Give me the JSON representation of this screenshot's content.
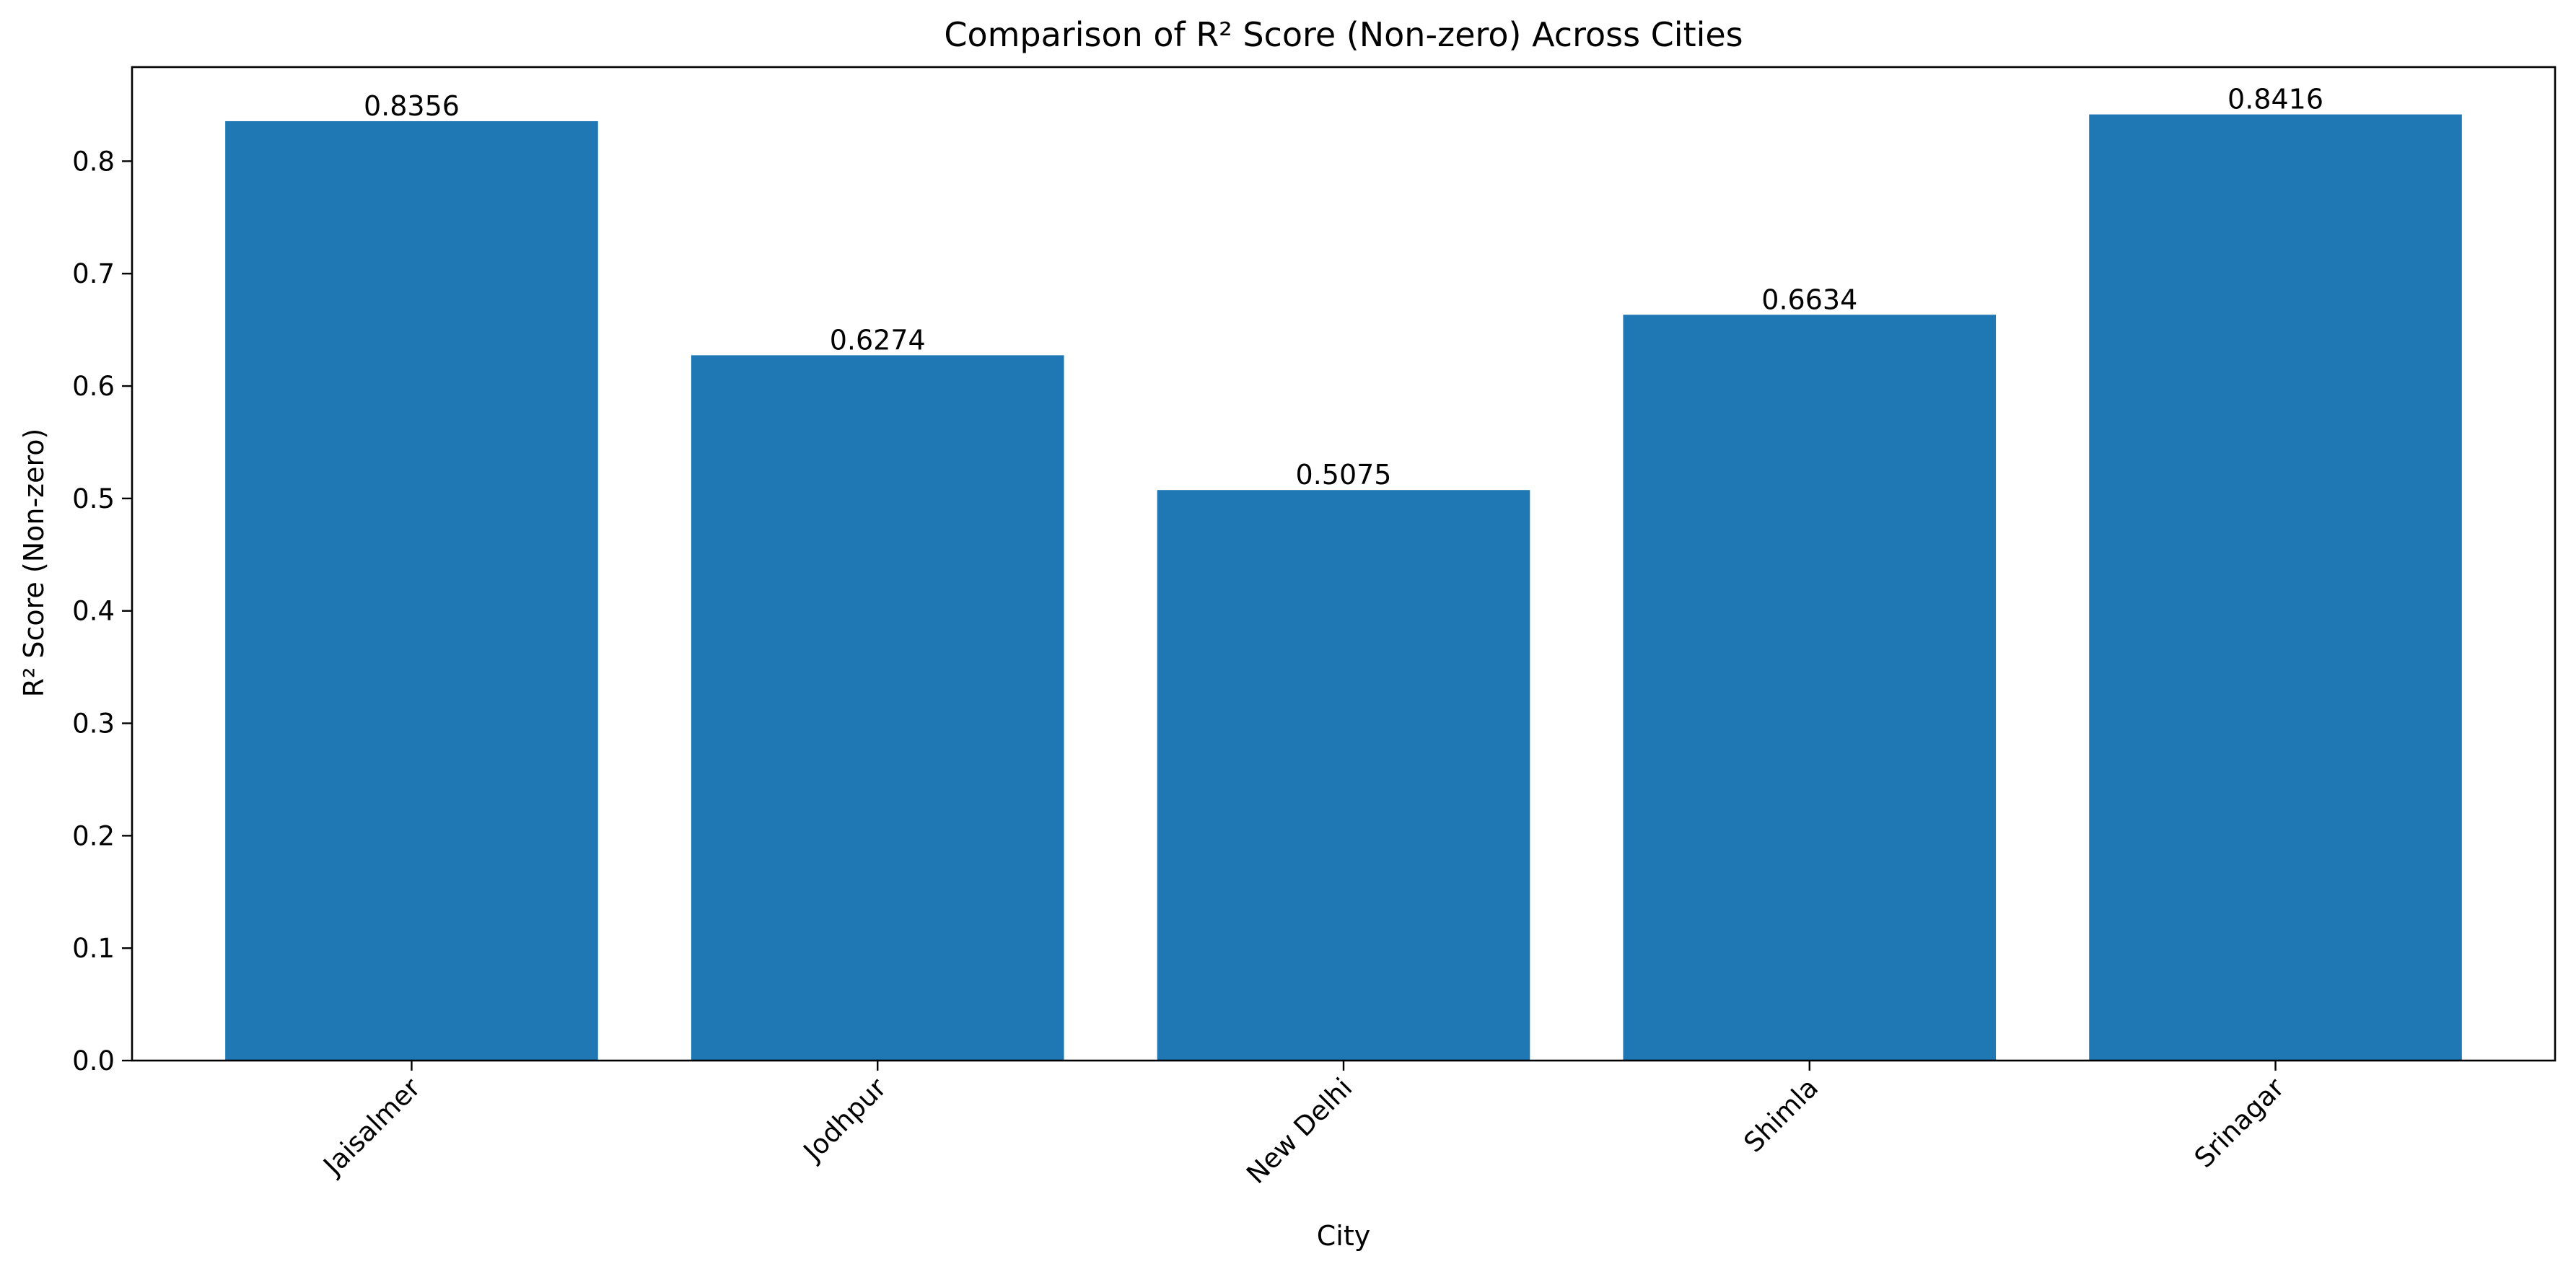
{
  "chart_data": {
    "type": "bar",
    "title": "Comparison of R² Score (Non-zero) Across Cities",
    "xlabel": "City",
    "ylabel": "R² Score (Non-zero)",
    "categories": [
      "Jaisalmer",
      "Jodhpur",
      "New Delhi",
      "Shimla",
      "Srinagar"
    ],
    "values": [
      0.8356,
      0.6274,
      0.5075,
      0.6634,
      0.8416
    ],
    "value_labels": [
      "0.8356",
      "0.6274",
      "0.5075",
      "0.6634",
      "0.8416"
    ],
    "ylim": [
      0,
      0.8837
    ],
    "yticks": [
      0.0,
      0.1,
      0.2,
      0.3,
      0.4,
      0.5,
      0.6,
      0.7,
      0.8
    ],
    "ytick_labels": [
      "0.0",
      "0.1",
      "0.2",
      "0.3",
      "0.4",
      "0.5",
      "0.6",
      "0.7",
      "0.8"
    ],
    "grid": false,
    "legend": "none",
    "bar_color": "#1f77b4",
    "xtick_rotation_deg": 45
  }
}
